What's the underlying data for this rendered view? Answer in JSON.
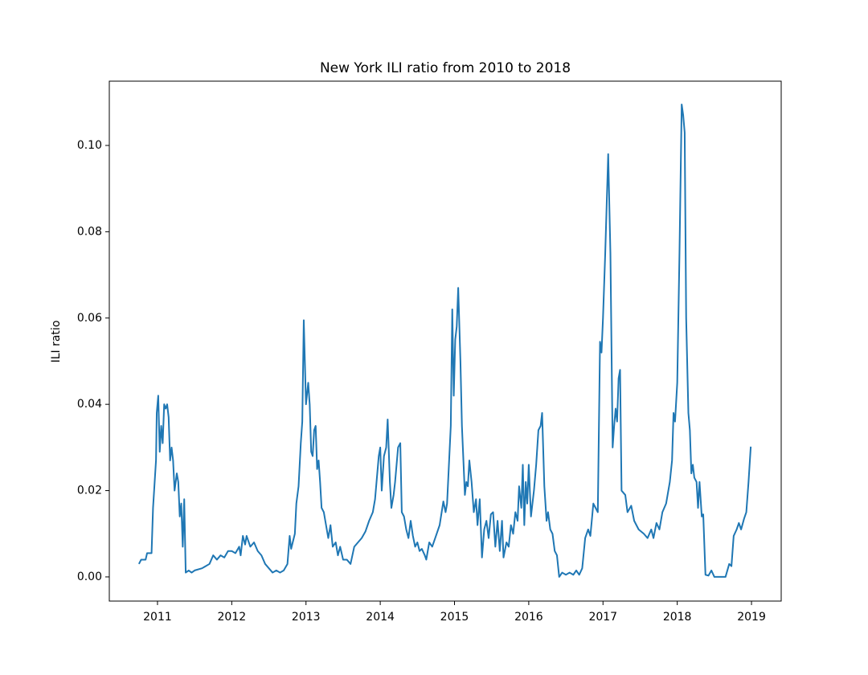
{
  "chart_data": {
    "type": "line",
    "title": "New York ILI ratio from 2010 to 2018",
    "y_label": "ILI ratio",
    "color": "#1f77b4",
    "xlim": [
      2010.351,
      2019.4
    ],
    "ylim": [
      -0.0056,
      0.1149
    ],
    "xticks": [
      2011,
      2012,
      2013,
      2014,
      2015,
      2016,
      2017,
      2018,
      2019
    ],
    "yticks": [
      {
        "value": 0,
        "label": "0.00"
      },
      0.02,
      0.04,
      0.06,
      0.08,
      {
        "value": 0.1,
        "label": "0.10"
      }
    ],
    "x": [
      2010.75,
      2010.78,
      2010.84,
      2010.86,
      2010.92,
      2010.94,
      2010.98,
      2010.99,
      2011.01,
      2011.03,
      2011.05,
      2011.07,
      2011.09,
      2011.11,
      2011.13,
      2011.15,
      2011.17,
      2011.19,
      2011.21,
      2011.23,
      2011.26,
      2011.28,
      2011.3,
      2011.32,
      2011.34,
      2011.36,
      2011.38,
      2011.42,
      2011.46,
      2011.5,
      2011.6,
      2011.7,
      2011.75,
      2011.8,
      2011.85,
      2011.9,
      2011.95,
      2012.0,
      2012.05,
      2012.1,
      2012.12,
      2012.15,
      2012.18,
      2012.2,
      2012.25,
      2012.3,
      2012.35,
      2012.4,
      2012.45,
      2012.5,
      2012.55,
      2012.6,
      2012.65,
      2012.7,
      2012.75,
      2012.78,
      2012.8,
      2012.85,
      2012.87,
      2012.9,
      2012.93,
      2012.95,
      2012.97,
      2013.0,
      2013.03,
      2013.05,
      2013.07,
      2013.09,
      2013.11,
      2013.13,
      2013.15,
      2013.17,
      2013.19,
      2013.21,
      2013.24,
      2013.26,
      2013.3,
      2013.33,
      2013.36,
      2013.4,
      2013.43,
      2013.46,
      2013.5,
      2013.55,
      2013.6,
      2013.65,
      2013.7,
      2013.75,
      2013.8,
      2013.85,
      2013.9,
      2013.93,
      2013.98,
      2014.0,
      2014.02,
      2014.05,
      2014.08,
      2014.1,
      2014.13,
      2014.15,
      2014.18,
      2014.2,
      2014.24,
      2014.27,
      2014.29,
      2014.32,
      2014.35,
      2014.38,
      2014.41,
      2014.44,
      2014.47,
      2014.5,
      2014.53,
      2014.56,
      2014.6,
      2014.62,
      2014.66,
      2014.7,
      2014.75,
      2014.8,
      2014.85,
      2014.88,
      2014.9,
      2014.95,
      2014.97,
      2014.99,
      2015.01,
      2015.03,
      2015.05,
      2015.08,
      2015.1,
      2015.12,
      2015.14,
      2015.16,
      2015.18,
      2015.2,
      2015.23,
      2015.26,
      2015.29,
      2015.31,
      2015.34,
      2015.37,
      2015.4,
      2015.43,
      2015.46,
      2015.49,
      2015.52,
      2015.55,
      2015.58,
      2015.61,
      2015.64,
      2015.66,
      2015.7,
      2015.73,
      2015.76,
      2015.79,
      2015.82,
      2015.85,
      2015.87,
      2015.9,
      2015.92,
      2015.94,
      2015.96,
      2015.98,
      2016.0,
      2016.03,
      2016.07,
      2016.1,
      2016.13,
      2016.16,
      2016.18,
      2016.21,
      2016.24,
      2016.26,
      2016.29,
      2016.32,
      2016.35,
      2016.38,
      2016.41,
      2016.45,
      2016.5,
      2016.55,
      2016.6,
      2016.64,
      2016.68,
      2016.72,
      2016.76,
      2016.8,
      2016.83,
      2016.87,
      2016.9,
      2016.93,
      2016.96,
      2016.98,
      2017.0,
      2017.03,
      2017.07,
      2017.1,
      2017.13,
      2017.15,
      2017.17,
      2017.19,
      2017.21,
      2017.23,
      2017.25,
      2017.3,
      2017.33,
      2017.38,
      2017.42,
      2017.48,
      2017.55,
      2017.6,
      2017.65,
      2017.68,
      2017.72,
      2017.76,
      2017.8,
      2017.85,
      2017.9,
      2017.93,
      2017.95,
      2017.97,
      2018.0,
      2018.03,
      2018.06,
      2018.08,
      2018.1,
      2018.12,
      2018.15,
      2018.17,
      2018.19,
      2018.21,
      2018.23,
      2018.26,
      2018.28,
      2018.3,
      2018.33,
      2018.35,
      2018.38,
      2018.42,
      2018.46,
      2018.5,
      2018.6,
      2018.65,
      2018.7,
      2018.73,
      2018.76,
      2018.8,
      2018.83,
      2018.86,
      2018.9,
      2018.93,
      2018.96,
      2018.99
    ],
    "values": [
      0.003,
      0.004,
      0.004,
      0.0055,
      0.0055,
      0.016,
      0.027,
      0.038,
      0.042,
      0.029,
      0.035,
      0.031,
      0.04,
      0.039,
      0.04,
      0.037,
      0.027,
      0.03,
      0.027,
      0.02,
      0.024,
      0.022,
      0.014,
      0.017,
      0.007,
      0.018,
      0.001,
      0.0015,
      0.001,
      0.0015,
      0.002,
      0.003,
      0.005,
      0.004,
      0.005,
      0.0045,
      0.006,
      0.006,
      0.0055,
      0.007,
      0.005,
      0.0095,
      0.0075,
      0.0095,
      0.007,
      0.008,
      0.006,
      0.005,
      0.003,
      0.002,
      0.001,
      0.0015,
      0.001,
      0.0015,
      0.003,
      0.0095,
      0.0065,
      0.01,
      0.017,
      0.021,
      0.031,
      0.036,
      0.0595,
      0.04,
      0.045,
      0.04,
      0.029,
      0.028,
      0.034,
      0.035,
      0.025,
      0.027,
      0.022,
      0.016,
      0.015,
      0.013,
      0.009,
      0.012,
      0.007,
      0.008,
      0.005,
      0.007,
      0.004,
      0.004,
      0.003,
      0.007,
      0.008,
      0.009,
      0.0105,
      0.013,
      0.015,
      0.018,
      0.028,
      0.03,
      0.02,
      0.028,
      0.03,
      0.0365,
      0.022,
      0.016,
      0.019,
      0.022,
      0.03,
      0.031,
      0.015,
      0.014,
      0.011,
      0.009,
      0.013,
      0.0095,
      0.007,
      0.008,
      0.006,
      0.0065,
      0.005,
      0.004,
      0.008,
      0.007,
      0.0095,
      0.012,
      0.0175,
      0.015,
      0.017,
      0.035,
      0.062,
      0.042,
      0.055,
      0.058,
      0.067,
      0.05,
      0.035,
      0.027,
      0.019,
      0.022,
      0.021,
      0.027,
      0.022,
      0.015,
      0.018,
      0.012,
      0.018,
      0.0045,
      0.011,
      0.013,
      0.009,
      0.0145,
      0.015,
      0.007,
      0.013,
      0.006,
      0.013,
      0.0045,
      0.008,
      0.007,
      0.012,
      0.01,
      0.015,
      0.013,
      0.021,
      0.016,
      0.026,
      0.012,
      0.022,
      0.017,
      0.026,
      0.014,
      0.02,
      0.026,
      0.034,
      0.035,
      0.038,
      0.021,
      0.013,
      0.015,
      0.011,
      0.01,
      0.006,
      0.005,
      0.0,
      0.001,
      0.0005,
      0.001,
      0.0005,
      0.0015,
      0.0005,
      0.002,
      0.009,
      0.011,
      0.0095,
      0.017,
      0.016,
      0.015,
      0.0545,
      0.052,
      0.06,
      0.075,
      0.098,
      0.075,
      0.03,
      0.035,
      0.039,
      0.036,
      0.046,
      0.048,
      0.02,
      0.019,
      0.015,
      0.0165,
      0.013,
      0.011,
      0.01,
      0.009,
      0.011,
      0.009,
      0.0125,
      0.011,
      0.015,
      0.017,
      0.022,
      0.027,
      0.038,
      0.036,
      0.045,
      0.075,
      0.1095,
      0.107,
      0.103,
      0.06,
      0.038,
      0.034,
      0.024,
      0.026,
      0.023,
      0.022,
      0.016,
      0.022,
      0.014,
      0.0145,
      0.0005,
      0.0003,
      0.0015,
      0.0,
      0.0,
      0.0,
      0.003,
      0.0025,
      0.0095,
      0.011,
      0.0125,
      0.011,
      0.0135,
      0.015,
      0.022,
      0.0302
    ]
  }
}
